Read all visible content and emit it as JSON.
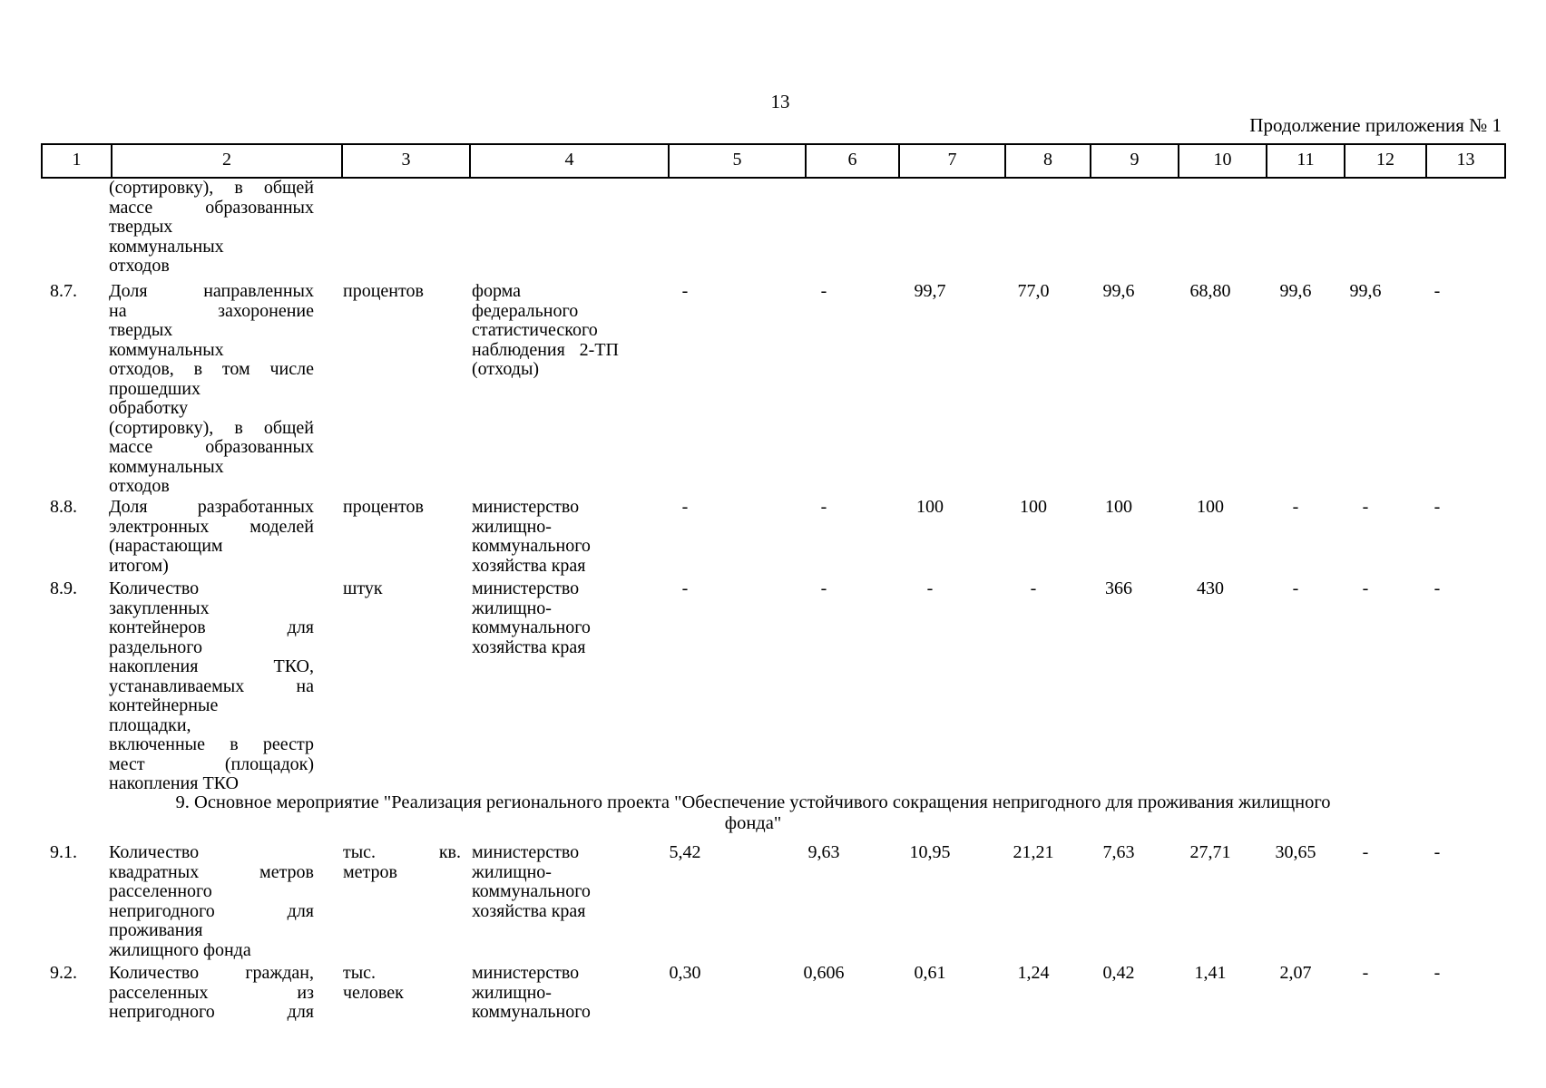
{
  "page": {
    "number": "13",
    "appendix_note": "Продолжение приложения № 1"
  },
  "table": {
    "column_numbers": [
      "1",
      "2",
      "3",
      "4",
      "5",
      "6",
      "7",
      "8",
      "9",
      "10",
      "11",
      "12",
      "13"
    ],
    "carryover_row": {
      "indicator_lines": [
        "(сортировку), в общей",
        "массе образованных",
        "твердых",
        "коммунальных",
        "отходов"
      ]
    },
    "rows": [
      {
        "num": "8.7.",
        "indicator_lines": [
          "Доля направленных",
          "на захоронение",
          "твердых",
          "коммунальных",
          "отходов, в том числе",
          "прошедших",
          "обработку",
          "(сортировку), в общей",
          "массе образованных",
          "коммунальных",
          "отходов"
        ],
        "unit_lines": [
          "процентов"
        ],
        "source_lines": [
          "форма",
          "федерального",
          "статистического",
          "наблюдения 2-ТП",
          "(отходы)"
        ],
        "values": [
          "-",
          "-",
          "99,7",
          "77,0",
          "99,6",
          "68,80",
          "99,6",
          "99,6",
          "-"
        ]
      },
      {
        "num": "8.8.",
        "indicator_lines": [
          "Доля разработанных",
          "электронных моделей",
          "(нарастающим",
          "итогом)"
        ],
        "unit_lines": [
          "процентов"
        ],
        "source_lines": [
          "министерство",
          "жилищно-",
          "коммунального",
          "хозяйства края"
        ],
        "values": [
          "-",
          "-",
          "100",
          "100",
          "100",
          "100",
          "-",
          "-",
          "-"
        ]
      },
      {
        "num": "8.9.",
        "indicator_lines": [
          "Количество",
          "закупленных",
          "контейнеров для",
          "раздельного",
          "накопления ТКО,",
          "устанавливаемых на",
          "контейнерные",
          "площадки,",
          "включенные в реестр",
          "мест (площадок)",
          "накопления ТКО"
        ],
        "unit_lines": [
          "штук"
        ],
        "source_lines": [
          "министерство",
          "жилищно-",
          "коммунального",
          "хозяйства края"
        ],
        "values": [
          "-",
          "-",
          "-",
          "-",
          "366",
          "430",
          "-",
          "-",
          "-"
        ]
      },
      {
        "num": "9.1.",
        "indicator_lines": [
          "Количество",
          "квадратных метров",
          "расселенного",
          "непригодного для",
          "проживания",
          "жилищного фонда"
        ],
        "unit_lines": [
          "тыс. кв.",
          "метров"
        ],
        "source_lines": [
          "министерство",
          "жилищно-",
          "коммунального",
          "хозяйства края"
        ],
        "values": [
          "5,42",
          "9,63",
          "10,95",
          "21,21",
          "7,63",
          "27,71",
          "30,65",
          "-",
          "-"
        ]
      },
      {
        "num": "9.2.",
        "indicator_lines": [
          "Количество граждан,",
          "расселенных из",
          "непригодного для"
        ],
        "unit_lines": [
          "тыс.",
          "человек"
        ],
        "source_lines": [
          "министерство",
          "жилищно-",
          "коммунального"
        ],
        "values": [
          "0,30",
          "0,606",
          "0,61",
          "1,24",
          "0,42",
          "1,41",
          "2,07",
          "-",
          "-"
        ]
      }
    ],
    "section_header_lines": [
      "9. Основное мероприятие \"Реализация регионального проекта \"Обеспечение устойчивого сокращения непригодного для проживания жилищного",
      "фонда\""
    ]
  }
}
